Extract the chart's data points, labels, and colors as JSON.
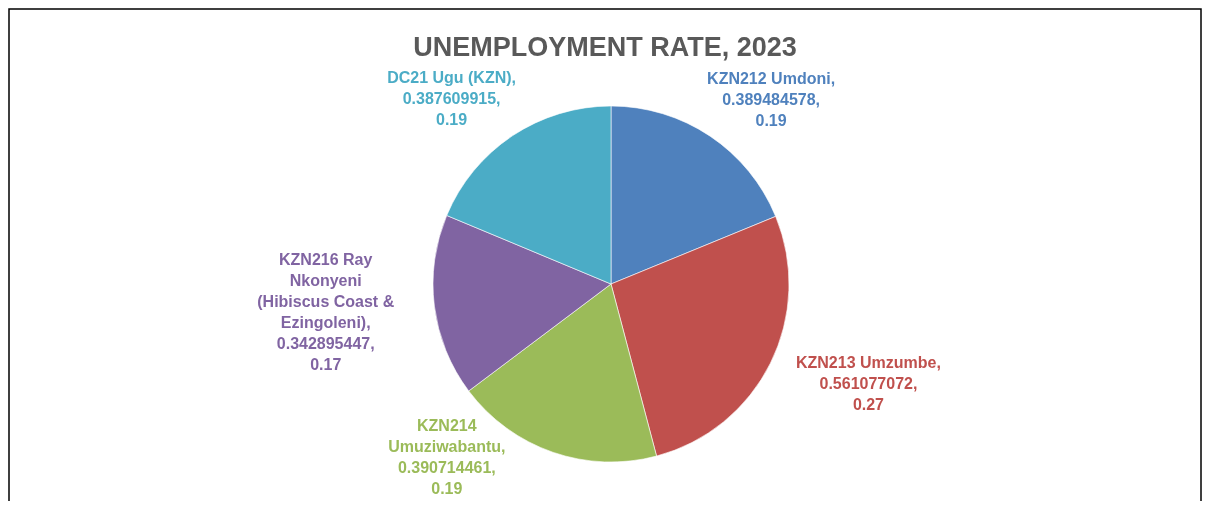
{
  "chart_data": {
    "type": "pie",
    "title": "UNEMPLOYMENT RATE, 2023",
    "categories": [
      "KZN212 Umdoni",
      "KZN213 Umzumbe",
      "KZN214 Umuziwabantu",
      "KZN216 Ray Nkonyeni (Hibiscus Coast & Ezingoleni)",
      "DC21 Ugu (KZN)"
    ],
    "values": [
      0.389484578,
      0.561077072,
      0.390714461,
      0.342895447,
      0.387609915
    ],
    "value_labels": [
      ", 0.389484578, 0.19",
      ", 0.561077072, 0.27",
      ", 0.390714461, 0.19",
      ", 0.342895447, 0.17",
      ", 0.387609915, 0.19"
    ],
    "colors": [
      "#4f81bd",
      "#c0504d",
      "#9bbb59",
      "#8064a2",
      "#4bacc6"
    ]
  }
}
